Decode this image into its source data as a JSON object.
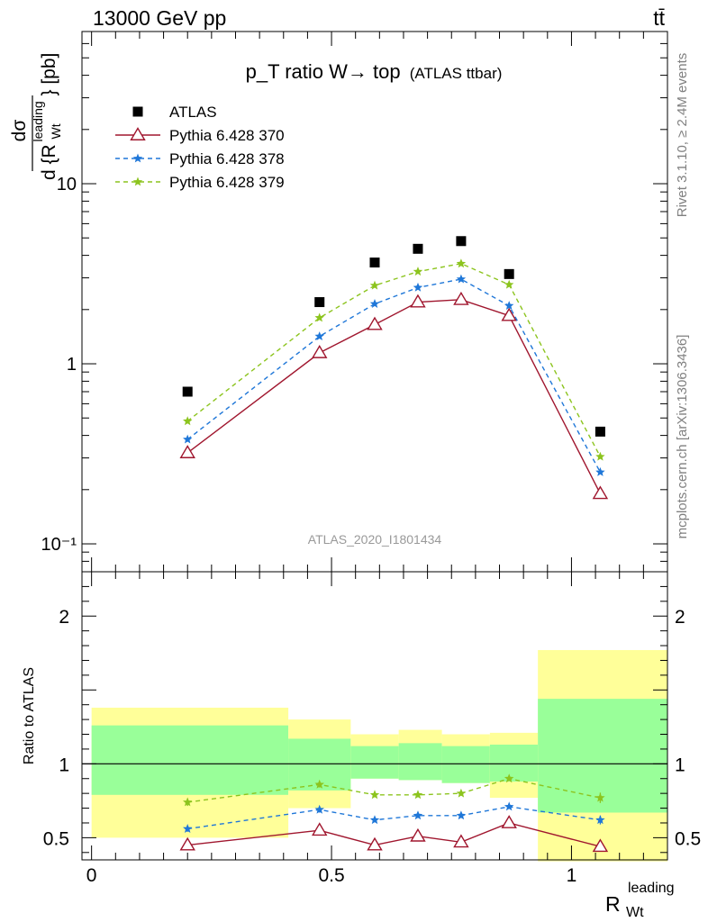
{
  "header": {
    "energy_label": "13000 GeV pp",
    "process_label": "tt̄",
    "plot_title_main": "p_T ratio W→ top",
    "plot_title_sub": "(ATLAS ttbar)",
    "analysis_id": "ATLAS_2020_I1801434",
    "side_label_top": "Rivet 3.1.10, ≥ 2.4M events",
    "side_label_bottom": "mcplots.cern.ch [arXiv:1306.3436]"
  },
  "axes": {
    "main_ylabel_lines": [
      "dσ",
      "d {R",
      "Wt",
      "leading",
      "} [pb]"
    ],
    "ratio_ylabel": "Ratio to ATLAS",
    "xlabel": "R",
    "xlabel_sub": "Wt",
    "xlabel_sup": "leading"
  },
  "chart_data": [
    {
      "type": "scatter",
      "panel": "main",
      "yscale": "log",
      "xlim": [
        -0.02,
        1.2
      ],
      "ylim": [
        0.07,
        70
      ],
      "y_tick_labels": [
        "10⁻¹",
        "1",
        "10"
      ],
      "y_tick_values": [
        0.1,
        1,
        10
      ],
      "legend_position": "top-left",
      "x": [
        0.2,
        0.475,
        0.59,
        0.68,
        0.77,
        0.87,
        1.06
      ],
      "series": [
        {
          "name": "ATLAS",
          "style": "marker",
          "marker": "square",
          "color": "#000000",
          "values": [
            0.7,
            2.2,
            3.65,
            4.35,
            4.8,
            3.15,
            0.42
          ]
        },
        {
          "name": "Pythia 6.428 370",
          "style": "solid",
          "marker": "triangle",
          "color": "#a0162e",
          "values": [
            0.32,
            1.15,
            1.65,
            2.2,
            2.27,
            1.85,
            0.19
          ]
        },
        {
          "name": "Pythia 6.428 378",
          "style": "dashed",
          "marker": "star",
          "color": "#1f77d8",
          "values": [
            0.38,
            1.42,
            2.15,
            2.65,
            2.95,
            2.1,
            0.25
          ]
        },
        {
          "name": "Pythia 6.428 379",
          "style": "dashed",
          "marker": "star",
          "color": "#8cc41e",
          "values": [
            0.48,
            1.8,
            2.72,
            3.25,
            3.6,
            2.75,
            0.305
          ]
        }
      ]
    },
    {
      "type": "line",
      "panel": "ratio",
      "xlim": [
        -0.02,
        1.2
      ],
      "ylim": [
        0.35,
        2.3
      ],
      "y_tick_labels": [
        "0.5",
        "1",
        "2"
      ],
      "y_tick_values": [
        0.5,
        1,
        2
      ],
      "x_tick_labels": [
        "0",
        "0.5",
        "1"
      ],
      "x_tick_values": [
        0,
        0.5,
        1
      ],
      "reference_line": 1,
      "bands": {
        "bin_edges": [
          0,
          0.41,
          0.54,
          0.64,
          0.73,
          0.83,
          0.93,
          1.2
        ],
        "yellow_low": [
          0.5,
          0.7,
          0.9,
          0.89,
          0.87,
          0.77,
          0.34
        ],
        "yellow_high": [
          1.38,
          1.3,
          1.2,
          1.23,
          1.2,
          1.21,
          1.77
        ],
        "green_low": [
          0.79,
          0.82,
          0.9,
          0.89,
          0.87,
          0.88,
          0.67
        ],
        "green_high": [
          1.26,
          1.17,
          1.12,
          1.14,
          1.12,
          1.13,
          1.44
        ],
        "yellow_color": "#ffff99",
        "green_color": "#99ff99"
      },
      "x": [
        0.2,
        0.475,
        0.59,
        0.68,
        0.77,
        0.87,
        1.06
      ],
      "series": [
        {
          "name": "Pythia 6.428 370",
          "style": "solid",
          "marker": "triangle",
          "color": "#a0162e",
          "values": [
            0.45,
            0.55,
            0.45,
            0.51,
            0.47,
            0.6,
            0.44
          ],
          "errors": [
            0.02,
            0.01,
            0.01,
            0.01,
            0.01,
            0.01,
            0.03
          ]
        },
        {
          "name": "Pythia 6.428 378",
          "style": "dashed",
          "marker": "star",
          "color": "#1f77d8",
          "values": [
            0.56,
            0.69,
            0.62,
            0.65,
            0.65,
            0.71,
            0.62
          ],
          "errors": [
            0.02,
            0.02,
            0.015,
            0.015,
            0.015,
            0.015,
            0.03
          ]
        },
        {
          "name": "Pythia 6.428 379",
          "style": "dashed",
          "marker": "star",
          "color": "#8cc41e",
          "values": [
            0.74,
            0.86,
            0.79,
            0.79,
            0.8,
            0.9,
            0.77
          ],
          "errors": [
            0.025,
            0.02,
            0.015,
            0.015,
            0.015,
            0.015,
            0.035
          ]
        }
      ]
    }
  ]
}
